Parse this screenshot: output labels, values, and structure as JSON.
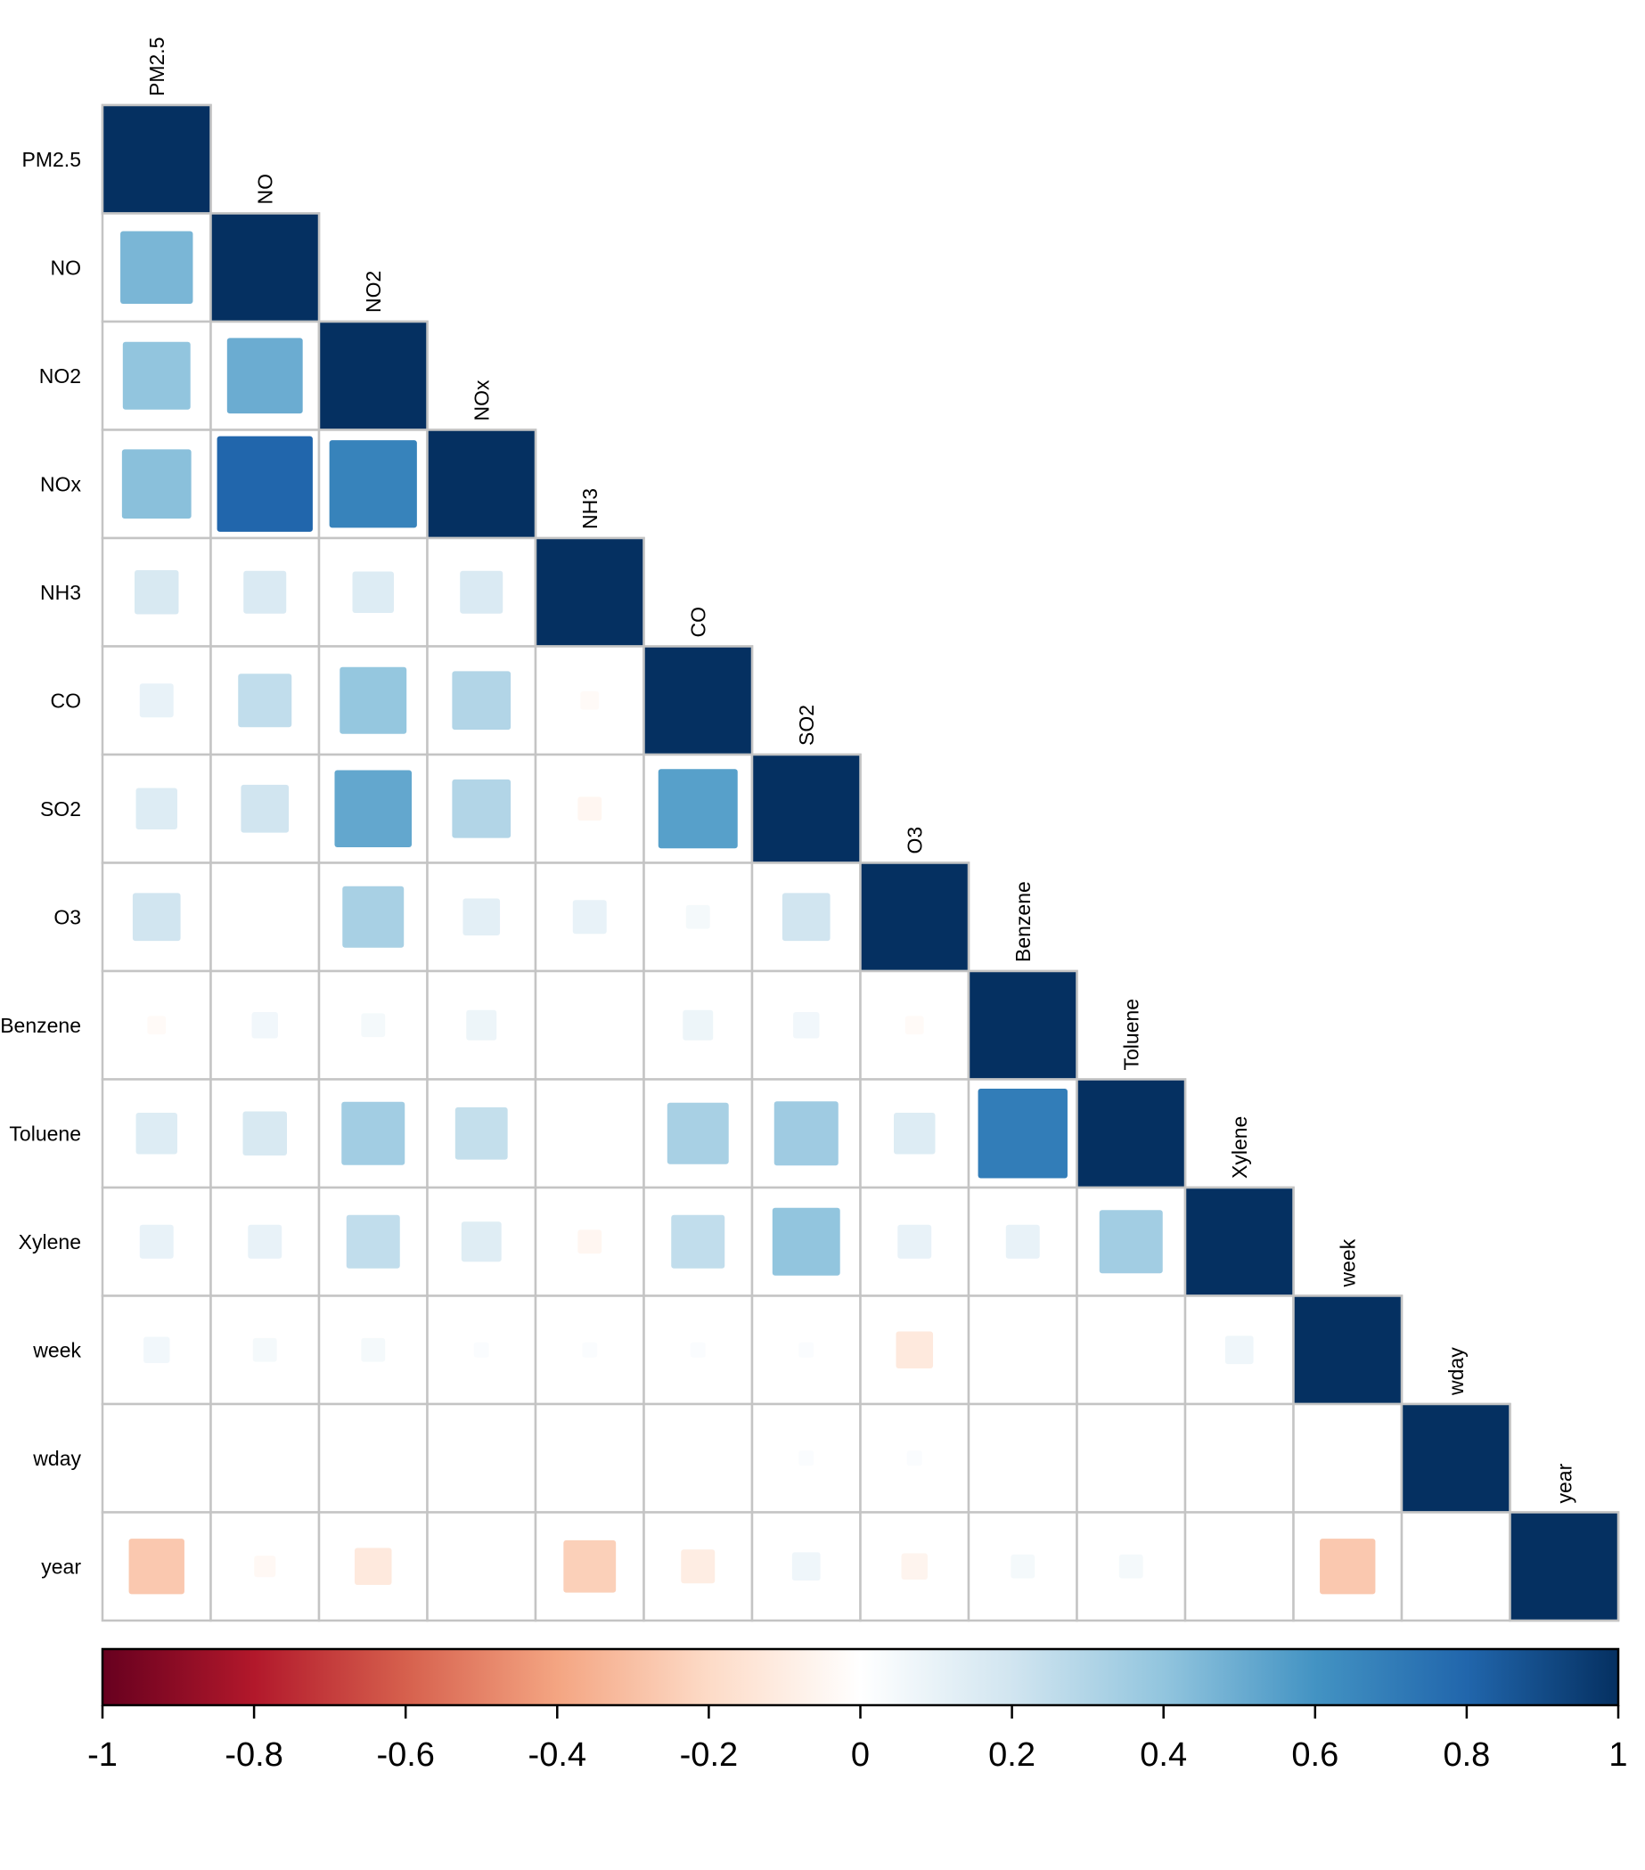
{
  "chart_data": {
    "type": "heatmap",
    "subtype": "correlation-matrix-lower-triangle",
    "variables": [
      "PM2.5",
      "NO",
      "NO2",
      "NOx",
      "NH3",
      "CO",
      "SO2",
      "O3",
      "Benzene",
      "Toluene",
      "Xylene",
      "week",
      "wday",
      "year"
    ],
    "matrix": [
      [
        1.0
      ],
      [
        0.46,
        1.0
      ],
      [
        0.4,
        0.5,
        1.0
      ],
      [
        0.42,
        0.8,
        0.67,
        1.0
      ],
      [
        0.17,
        0.16,
        0.15,
        0.16,
        1.0
      ],
      [
        0.1,
        0.25,
        0.39,
        0.3,
        -0.03,
        1.0
      ],
      [
        0.15,
        0.2,
        0.52,
        0.3,
        -0.05,
        0.55,
        1.0
      ],
      [
        0.2,
        0.0,
        0.33,
        0.12,
        0.1,
        0.05,
        0.2,
        1.0
      ],
      [
        -0.03,
        0.06,
        0.05,
        0.08,
        0.0,
        0.08,
        0.06,
        -0.03,
        1.0
      ],
      [
        0.15,
        0.17,
        0.35,
        0.24,
        0.0,
        0.33,
        0.36,
        0.15,
        0.7,
        1.0
      ],
      [
        0.1,
        0.1,
        0.25,
        0.14,
        -0.05,
        0.25,
        0.4,
        0.1,
        0.1,
        0.35,
        1.0
      ],
      [
        0.06,
        0.05,
        0.05,
        0.02,
        0.02,
        0.02,
        0.02,
        -0.12,
        0.0,
        0.0,
        0.07,
        1.0
      ],
      [
        0.0,
        0.0,
        0.0,
        0.0,
        0.0,
        0.0,
        0.02,
        0.02,
        0.0,
        0.0,
        0.0,
        0.0,
        1.0
      ],
      [
        -0.27,
        -0.04,
        -0.12,
        0.0,
        -0.24,
        -0.1,
        0.07,
        -0.06,
        0.05,
        0.05,
        0.0,
        -0.27,
        0.0,
        1.0
      ]
    ],
    "colorbar": {
      "range": [
        -1,
        1
      ],
      "tick_labels": [
        "-1",
        "-0.8",
        "-0.6",
        "-0.4",
        "-0.2",
        "0",
        "0.2",
        "0.4",
        "0.6",
        "0.8",
        "1"
      ],
      "colors_low_to_high": [
        "#67001f",
        "#b2182b",
        "#d6604d",
        "#f4a582",
        "#fddbc7",
        "#ffffff",
        "#d1e5f0",
        "#92c5de",
        "#4393c3",
        "#2166ac",
        "#053061"
      ]
    },
    "grid": true,
    "legend_placement": "bottom"
  }
}
